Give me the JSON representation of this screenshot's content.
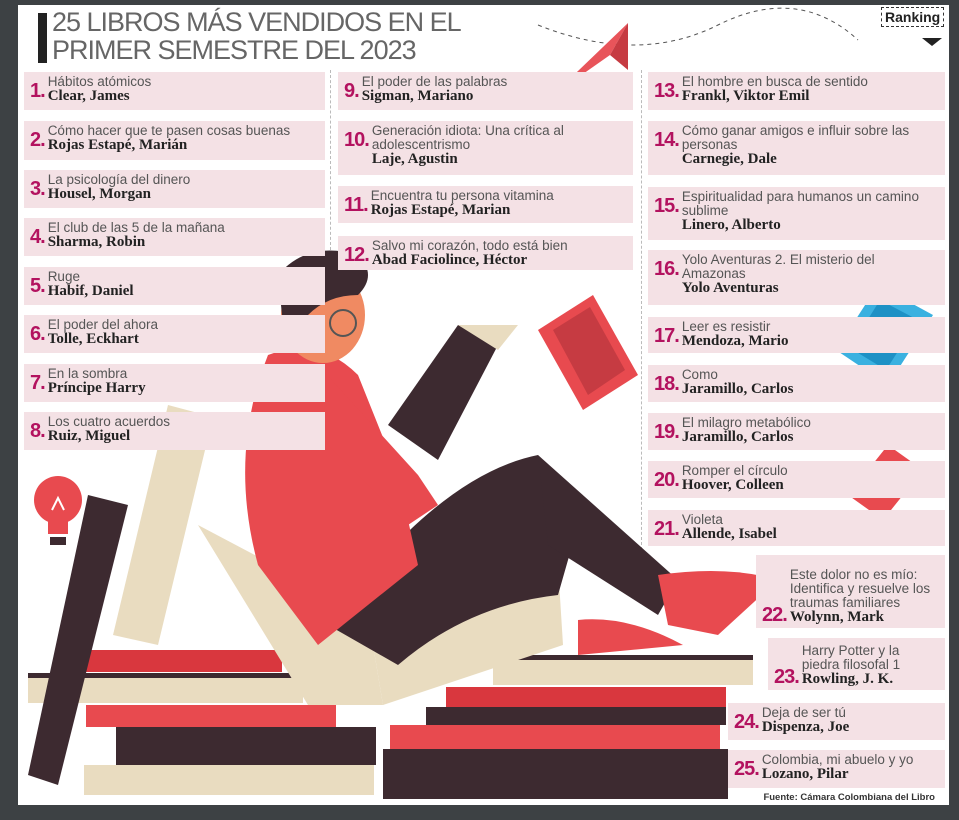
{
  "header": {
    "title_line1": "25 LIBROS MÁS VENDIDOS EN EL",
    "title_line2": "PRIMER SEMESTRE DEL 2023",
    "badge": "Ranking"
  },
  "colors": {
    "accent": "#b3125f",
    "box": "#f4e1e5",
    "frame": "#3d4144"
  },
  "items": [
    {
      "rank": "1.",
      "title": "Hábitos atómicos",
      "author": "Clear, James"
    },
    {
      "rank": "2.",
      "title": "Cómo hacer que te pasen cosas buenas",
      "author": "Rojas Estapé, Marián"
    },
    {
      "rank": "3.",
      "title": "La psicología del dinero",
      "author": "Housel, Morgan"
    },
    {
      "rank": "4.",
      "title": "El club de las 5 de la mañana",
      "author": "Sharma, Robin"
    },
    {
      "rank": "5.",
      "title": "Ruge",
      "author": "Habif, Daniel"
    },
    {
      "rank": "6.",
      "title": "El poder del ahora",
      "author": "Tolle, Eckhart"
    },
    {
      "rank": "7.",
      "title": "En la sombra",
      "author": "Príncipe Harry"
    },
    {
      "rank": "8.",
      "title": "Los cuatro acuerdos",
      "author": "Ruiz, Miguel"
    },
    {
      "rank": "9.",
      "title": "El poder de las palabras",
      "author": "Sigman, Mariano"
    },
    {
      "rank": "10.",
      "title": "Generación idiota: Una crítica al adolescentrismo",
      "author": "Laje, Agustin"
    },
    {
      "rank": "11.",
      "title": "Encuentra tu persona vitamina",
      "author": "Rojas Estapé, Marian"
    },
    {
      "rank": "12.",
      "title": "Salvo mi corazón, todo está bien",
      "author": "Abad Faciolince, Héctor"
    },
    {
      "rank": "13.",
      "title": "El hombre en busca de sentido",
      "author": "Frankl, Viktor Emil"
    },
    {
      "rank": "14.",
      "title": "Cómo ganar amigos e influir sobre las personas",
      "author": "Carnegie, Dale"
    },
    {
      "rank": "15.",
      "title": "Espiritualidad para humanos un camino sublime",
      "author": "Linero, Alberto"
    },
    {
      "rank": "16.",
      "title": "Yolo Aventuras 2. El misterio del Amazonas",
      "author": "Yolo Aventuras"
    },
    {
      "rank": "17.",
      "title": "Leer es resistir",
      "author": "Mendoza, Mario"
    },
    {
      "rank": "18.",
      "title": "Como",
      "author": "Jaramillo, Carlos"
    },
    {
      "rank": "19.",
      "title": "El milagro metabólico",
      "author": "Jaramillo, Carlos"
    },
    {
      "rank": "20.",
      "title": "Romper el círculo",
      "author": "Hoover, Colleen"
    },
    {
      "rank": "21.",
      "title": "Violeta",
      "author": "Allende, Isabel"
    },
    {
      "rank": "22.",
      "title": "Este dolor no es mío: Identifica y resuelve los traumas familiares",
      "author": "Wolynn, Mark"
    },
    {
      "rank": "23.",
      "title": "Harry Potter y la piedra filosofal 1",
      "author": "Rowling, J. K."
    },
    {
      "rank": "24.",
      "title": "Deja de ser tú",
      "author": "Dispenza, Joe"
    },
    {
      "rank": "25.",
      "title": "Colombia, mi abuelo y yo",
      "author": "Lozano, Pilar"
    }
  ],
  "footer": {
    "source": "Fuente: Cámara Colombiana del Libro"
  }
}
